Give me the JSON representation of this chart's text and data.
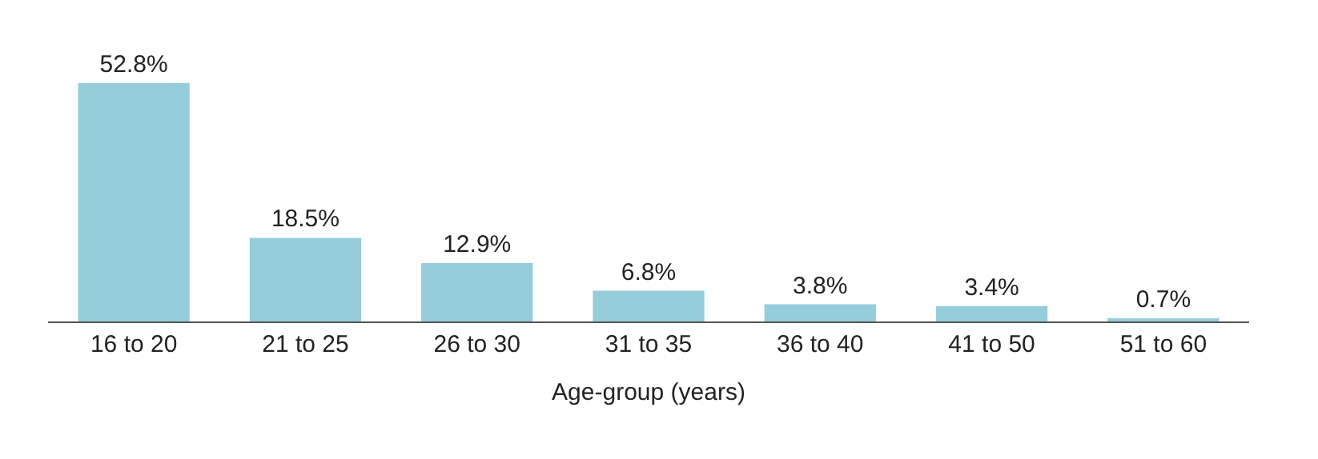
{
  "chart_data": {
    "type": "bar",
    "xlabel": "Age-group (years)",
    "categories": [
      "16 to 20",
      "21 to 25",
      "26 to 30",
      "31 to 35",
      "36 to 40",
      "41 to 50",
      "51 to 60"
    ],
    "values": [
      52.8,
      18.5,
      12.9,
      6.8,
      3.8,
      3.4,
      0.7
    ],
    "value_labels": [
      "52.8%",
      "18.5%",
      "12.9%",
      "6.8%",
      "3.8%",
      "3.4%",
      "0.7%"
    ],
    "color": "#96cddb",
    "grid": false,
    "legend": false
  }
}
